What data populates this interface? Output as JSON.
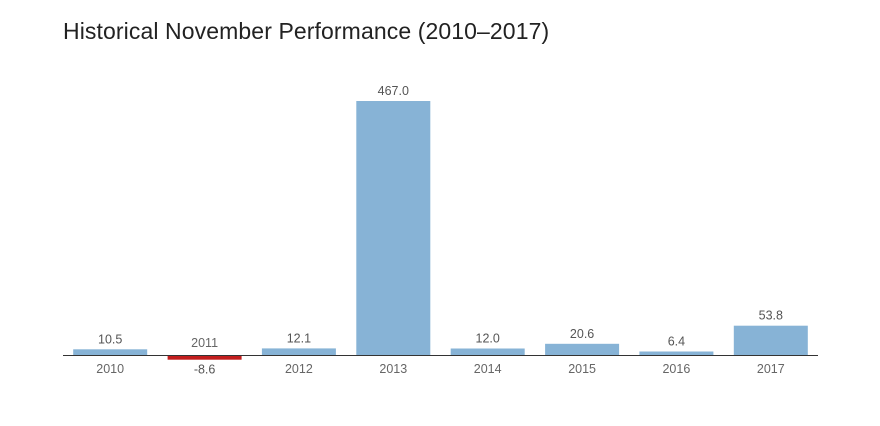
{
  "chart_data": {
    "type": "bar",
    "title": "Historical November Performance (2010–2017)",
    "categories": [
      "2010",
      "2011",
      "2012",
      "2013",
      "2014",
      "2015",
      "2016",
      "2017"
    ],
    "values": [
      10.5,
      -8.6,
      12.1,
      467.0,
      12.0,
      20.6,
      6.4,
      53.8
    ],
    "value_labels": [
      "10.5",
      "-8.6",
      "12.1",
      "467.0",
      "12.0",
      "20.6",
      "6.4",
      "53.8"
    ],
    "xlabel": "",
    "ylabel": "",
    "ylim": [
      -8.6,
      467.0
    ],
    "grid": false,
    "legend": "none",
    "colors": {
      "positive": "#87b3d6",
      "negative": "#c21d1d",
      "axis": "#333333"
    }
  }
}
